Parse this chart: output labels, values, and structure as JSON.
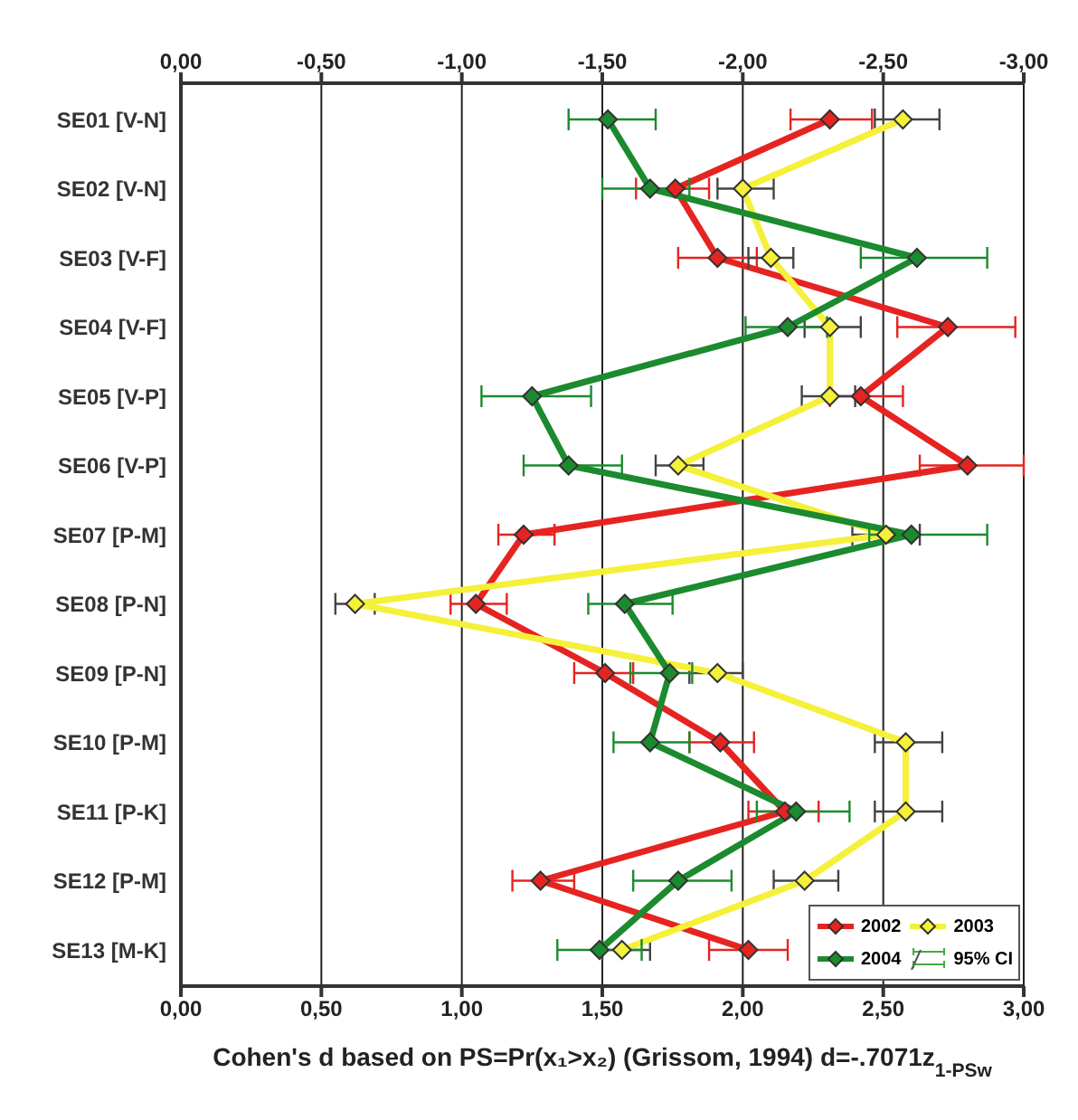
{
  "chart_data": {
    "type": "line",
    "orientation": "horizontal",
    "xlabel": "Cohen's d based on PS=Pr(x₁>x₂) (Grissom, 1994) d=-.7071z$_{1-PSw}$",
    "categories": [
      "SE01 [V-N]",
      "SE02 [V-N]",
      "SE03 [V-F]",
      "SE04 [V-F]",
      "SE05 [V-P]",
      "SE06 [V-P]",
      "SE07 [P-M]",
      "SE08 [P-N]",
      "SE09 [P-N]",
      "SE10 [P-M]",
      "SE11 [P-K]",
      "SE12 [P-M]",
      "SE13 [M-K]"
    ],
    "xlim": [
      0,
      3
    ],
    "xticks": [
      {
        "value": 0,
        "label": "0,00"
      },
      {
        "value": 0.5,
        "label": "0,50"
      },
      {
        "value": 1,
        "label": "1,00"
      },
      {
        "value": 1.5,
        "label": "1,50"
      },
      {
        "value": 2,
        "label": "2,00"
      },
      {
        "value": 2.5,
        "label": "2,50"
      },
      {
        "value": 3,
        "label": "3,00"
      }
    ],
    "x2lim": [
      0,
      -3
    ],
    "x2ticks": [
      {
        "value": 0,
        "label": "0,00"
      },
      {
        "value": -0.5,
        "label": "-0,50"
      },
      {
        "value": -1,
        "label": "-1,00"
      },
      {
        "value": -1.5,
        "label": "-1,50"
      },
      {
        "value": -2,
        "label": "-2,00"
      },
      {
        "value": -2.5,
        "label": "-2,50"
      },
      {
        "value": -3,
        "label": "-3,00"
      }
    ],
    "grid": "x",
    "legend": "bottom right",
    "line_style": "solid",
    "annotations": [
      "95% CI"
    ],
    "series": [
      {
        "name": "2002",
        "color": "#e52421",
        "marker": "diamond",
        "values": [
          2.31,
          1.76,
          1.91,
          2.73,
          2.42,
          2.8,
          1.22,
          1.05,
          1.51,
          1.92,
          2.15,
          1.28,
          2.02
        ],
        "errors": [
          [
            2.17,
            2.46
          ],
          [
            1.62,
            1.88
          ],
          [
            1.77,
            2.05
          ],
          [
            2.55,
            2.97
          ],
          [
            2.31,
            2.57
          ],
          [
            2.63,
            3.0
          ],
          [
            1.13,
            1.33
          ],
          [
            0.96,
            1.16
          ],
          [
            1.4,
            1.61
          ],
          [
            1.81,
            2.04
          ],
          [
            2.02,
            2.27
          ],
          [
            1.18,
            1.4
          ],
          [
            1.88,
            2.16
          ]
        ]
      },
      {
        "name": "2003",
        "color": "#f5f03a",
        "marker": "diamond",
        "values": [
          2.57,
          2.0,
          2.1,
          2.31,
          2.31,
          1.77,
          2.51,
          0.62,
          1.91,
          2.58,
          2.58,
          2.22,
          1.57
        ],
        "errors": [
          [
            2.47,
            2.7
          ],
          [
            1.91,
            2.11
          ],
          [
            2.02,
            2.18
          ],
          [
            2.22,
            2.42
          ],
          [
            2.21,
            2.4
          ],
          [
            1.69,
            1.86
          ],
          [
            2.39,
            2.63
          ],
          [
            0.55,
            0.69
          ],
          [
            1.81,
            2.0
          ],
          [
            2.47,
            2.71
          ],
          [
            2.47,
            2.71
          ],
          [
            2.11,
            2.34
          ],
          [
            1.5,
            1.67
          ]
        ]
      },
      {
        "name": "2004",
        "color": "#1c8a2e",
        "marker": "diamond",
        "values": [
          1.52,
          1.67,
          2.62,
          2.16,
          1.25,
          1.38,
          2.6,
          1.58,
          1.74,
          1.67,
          2.19,
          1.77,
          1.49
        ],
        "errors": [
          [
            1.38,
            1.69
          ],
          [
            1.5,
            1.81
          ],
          [
            2.42,
            2.87
          ],
          [
            2.01,
            2.3
          ],
          [
            1.07,
            1.46
          ],
          [
            1.22,
            1.57
          ],
          [
            2.45,
            2.87
          ],
          [
            1.45,
            1.75
          ],
          [
            1.6,
            1.82
          ],
          [
            1.54,
            1.81
          ],
          [
            2.05,
            2.38
          ],
          [
            1.61,
            1.96
          ],
          [
            1.34,
            1.64
          ]
        ]
      }
    ]
  }
}
